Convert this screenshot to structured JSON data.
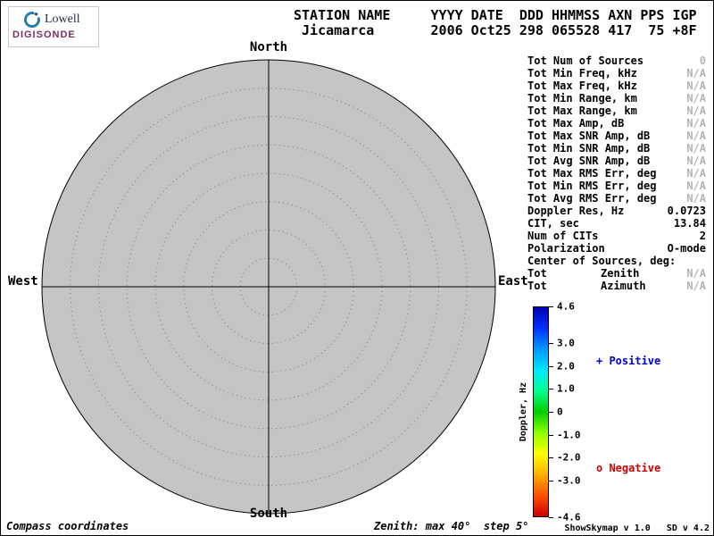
{
  "logo": {
    "brand_top": "Lowell",
    "brand_bottom": "DIGISONDE"
  },
  "header": {
    "labels_line": "STATION NAME     YYYY DATE  DDD HHMMSS AXN PPS IGP",
    "values_line": " Jicamarca       2006 Oct25 298 065528 417  75 +8F"
  },
  "stats": {
    "rows": [
      {
        "label": "Tot Num of Sources",
        "value": "0",
        "muted": true
      },
      {
        "label": "Tot Min Freq, kHz",
        "value": "N/A",
        "muted": true
      },
      {
        "label": "Tot Max Freq, kHz",
        "value": "N/A",
        "muted": true
      },
      {
        "label": "Tot Min Range, km",
        "value": "N/A",
        "muted": true
      },
      {
        "label": "Tot Max Range, km",
        "value": "N/A",
        "muted": true
      },
      {
        "label": "Tot Max Amp, dB",
        "value": "N/A",
        "muted": true
      },
      {
        "label": "Tot Max SNR Amp, dB",
        "value": "N/A",
        "muted": true
      },
      {
        "label": "Tot Min SNR Amp, dB",
        "value": "N/A",
        "muted": true
      },
      {
        "label": "Tot Avg SNR Amp, dB",
        "value": "N/A",
        "muted": true
      },
      {
        "label": "Tot Max RMS Err, deg",
        "value": "N/A",
        "muted": true
      },
      {
        "label": "Tot Min RMS Err, deg",
        "value": "N/A",
        "muted": true
      },
      {
        "label": "Tot Avg RMS Err, deg",
        "value": "N/A",
        "muted": true
      },
      {
        "label": "Doppler Res, Hz",
        "value": "0.0723",
        "muted": false
      },
      {
        "label": "CIT, sec",
        "value": "13.84",
        "muted": false
      },
      {
        "label": "Num of CITs",
        "value": "2",
        "muted": false
      },
      {
        "label": "Polarization",
        "value": "O-mode",
        "muted": false
      },
      {
        "label": "Center of Sources, deg:",
        "value": "",
        "muted": false
      },
      {
        "label": "Tot",
        "mid": "Zenith",
        "value": "N/A",
        "muted": true
      },
      {
        "label": "Tot",
        "mid": "Azimuth",
        "value": "N/A",
        "muted": true
      }
    ]
  },
  "chart_data": {
    "type": "scatter",
    "projection": "polar",
    "description": "Digisonde skymap of echo sources in compass coordinates; zero sources plotted for this record",
    "compass_labels": {
      "north": "North",
      "east": "East",
      "south": "South",
      "west": "West"
    },
    "zenith_max_deg": 40,
    "zenith_step_deg": 5,
    "rings_deg": [
      5,
      10,
      15,
      20,
      25,
      30,
      35,
      40
    ],
    "points": [],
    "colorbar": {
      "label": "Doppler, Hz",
      "min": -4.6,
      "max": 4.6,
      "ticks": [
        {
          "value": 4.6,
          "label": "4.6"
        },
        {
          "value": 3.0,
          "label": "3.0"
        },
        {
          "value": 2.0,
          "label": "2.0"
        },
        {
          "value": 1.0,
          "label": "1.0"
        },
        {
          "value": 0,
          "label": "0"
        },
        {
          "value": -1.0,
          "label": "-1.0"
        },
        {
          "value": -2.0,
          "label": "-2.0"
        },
        {
          "value": -3.0,
          "label": "-3.0"
        },
        {
          "value": -4.6,
          "label": "-4.6"
        }
      ],
      "gradient_top_to_bottom": [
        "#0000b0",
        "#0030ff",
        "#0098ff",
        "#00e8ff",
        "#00ff90",
        "#00cc00",
        "#8cff00",
        "#ffff00",
        "#ffb000",
        "#ff5000",
        "#cc0000"
      ]
    },
    "legend": {
      "positive_label": "+ Positive",
      "negative_label": "o Negative",
      "positive_color": "#0000cc",
      "negative_color": "#cc0000"
    }
  },
  "colors": {
    "plot_fill": "#c5c5c5",
    "muted_text": "#b4b4b4"
  },
  "footer": {
    "left": "Compass coordinates",
    "center": "Zenith: max 40°  step 5°",
    "right": "ShowSkymap v 1.0   SD v 4.2"
  }
}
